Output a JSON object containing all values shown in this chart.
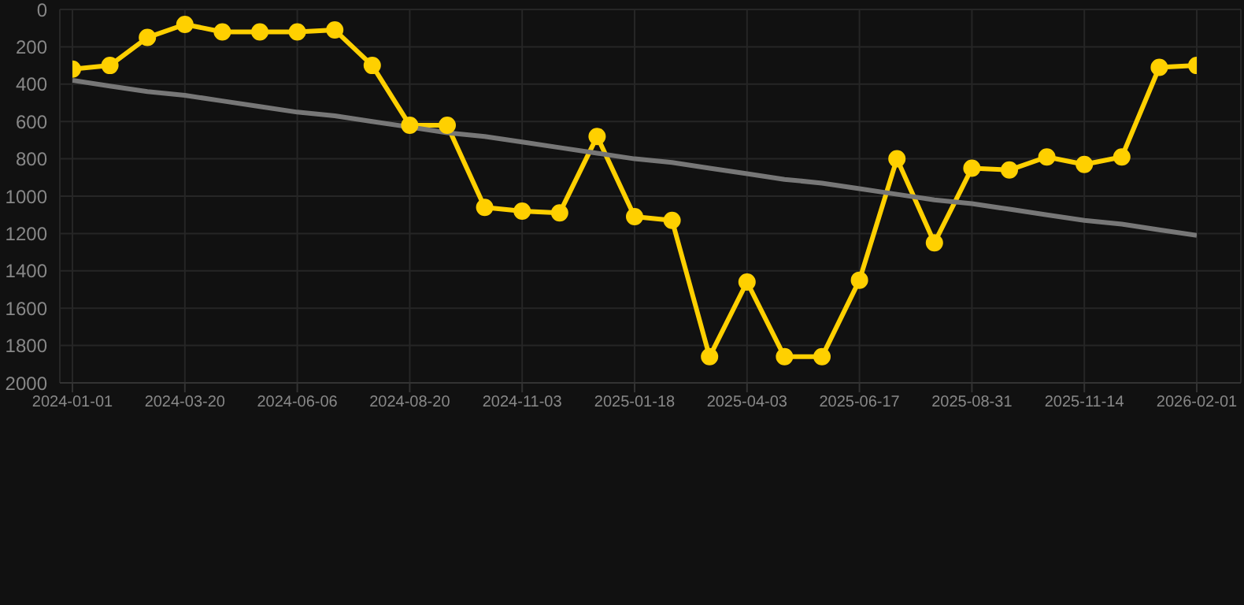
{
  "chart_data": {
    "type": "line",
    "categories": [
      "2024-01-01",
      null,
      null,
      "2024-03-20",
      null,
      null,
      "2024-06-06",
      null,
      null,
      "2024-08-20",
      null,
      null,
      "2024-11-03",
      null,
      null,
      "2025-01-18",
      null,
      null,
      "2025-04-03",
      null,
      null,
      "2025-06-17",
      null,
      null,
      "2025-08-31",
      null,
      null,
      "2025-11-14",
      null,
      null,
      "2026-02-01"
    ],
    "series": [
      {
        "color": "#ffd000",
        "values": [
          320,
          300,
          150,
          80,
          120,
          120,
          120,
          110,
          300,
          620,
          620,
          1060,
          1080,
          1090,
          680,
          1110,
          1130,
          1860,
          1460,
          1860,
          1860,
          1450,
          800,
          1250,
          850,
          860,
          790,
          830,
          790,
          310,
          300
        ]
      },
      {
        "type": "line",
        "color": "#777777",
        "marker": "none",
        "values": [
          380,
          410,
          440,
          460,
          490,
          520,
          550,
          570,
          600,
          630,
          660,
          680,
          710,
          740,
          770,
          800,
          820,
          850,
          880,
          910,
          930,
          960,
          990,
          1020,
          1040,
          1070,
          1100,
          1130,
          1150,
          1180,
          1210
        ]
      }
    ],
    "ylim": [
      2000,
      0
    ],
    "yticks": [
      0,
      200,
      400,
      600,
      800,
      1000,
      1200,
      1400,
      1600,
      1800,
      2000
    ],
    "grid": true,
    "marker": "circle"
  }
}
